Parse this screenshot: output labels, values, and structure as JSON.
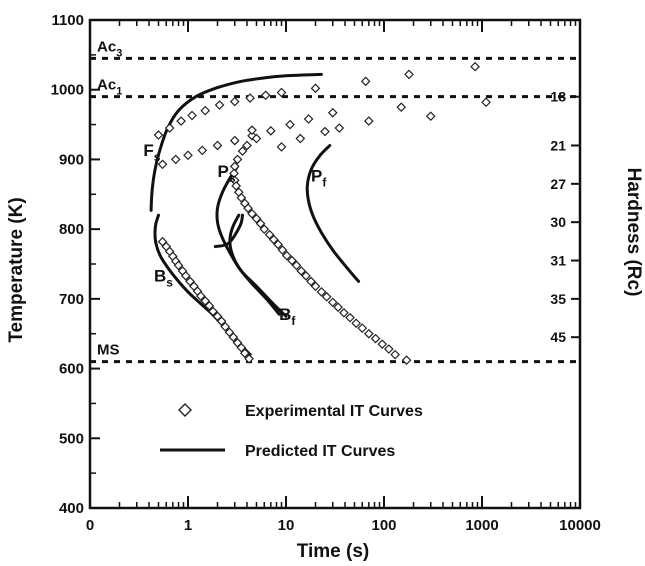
{
  "chart_data": {
    "type": "scatter",
    "x_scale": "log",
    "xlim": [
      0.1,
      10000
    ],
    "ylim": [
      400,
      1100
    ],
    "xlabel": "Time (s)",
    "ylabel": "Temperature (K)",
    "y2label": "Hardness (Rc)",
    "x_ticks": [
      {
        "value": 0.1,
        "label": "0"
      },
      {
        "value": 1,
        "label": "1"
      },
      {
        "value": 10,
        "label": "10"
      },
      {
        "value": 100,
        "label": "100"
      },
      {
        "value": 1000,
        "label": "1000"
      },
      {
        "value": 10000,
        "label": "10000"
      }
    ],
    "y_ticks": [
      400,
      500,
      600,
      700,
      800,
      900,
      1000,
      1100
    ],
    "hardness_ticks": [
      {
        "y": 990,
        "label": "18"
      },
      {
        "y": 920,
        "label": "21"
      },
      {
        "y": 865,
        "label": "27"
      },
      {
        "y": 810,
        "label": "30"
      },
      {
        "y": 755,
        "label": "31"
      },
      {
        "y": 700,
        "label": "35"
      },
      {
        "y": 645,
        "label": "45"
      }
    ],
    "ref_lines": [
      {
        "name": "Ac3",
        "base": "Ac",
        "sub": "3",
        "y": 1045
      },
      {
        "name": "Ac1",
        "base": "Ac",
        "sub": "1",
        "y": 990
      },
      {
        "name": "MS",
        "base": "MS",
        "sub": "",
        "y": 610
      }
    ],
    "curve_labels": [
      {
        "base": "F",
        "sub": "s",
        "x": 0.35,
        "y": 905
      },
      {
        "base": "P",
        "sub": "s",
        "x": 2.0,
        "y": 875
      },
      {
        "base": "P",
        "sub": "f",
        "x": 18,
        "y": 868
      },
      {
        "base": "B",
        "sub": "s",
        "x": 0.45,
        "y": 725
      },
      {
        "base": "B",
        "sub": "f",
        "x": 8.5,
        "y": 670
      }
    ],
    "legend": {
      "placement": "bottom-center",
      "entries": [
        {
          "marker": "diamond",
          "label": "Experimental IT Curves"
        },
        {
          "marker": "line",
          "label": "Predicted IT Curves"
        }
      ]
    },
    "series": [
      {
        "kind": "experimental",
        "marker": "diamond",
        "points": [
          [
            0.5,
            935
          ],
          [
            0.65,
            945
          ],
          [
            0.85,
            955
          ],
          [
            1.1,
            963
          ],
          [
            1.5,
            970
          ],
          [
            2.1,
            978
          ],
          [
            3,
            983
          ],
          [
            4.3,
            988
          ],
          [
            6.2,
            992
          ],
          [
            9,
            996
          ],
          [
            20,
            1002
          ],
          [
            65,
            1012
          ],
          [
            180,
            1022
          ],
          [
            850,
            1033
          ],
          [
            0.55,
            893
          ],
          [
            0.75,
            900
          ],
          [
            1.0,
            906
          ],
          [
            1.4,
            913
          ],
          [
            2,
            920
          ],
          [
            3,
            927
          ],
          [
            4.5,
            934
          ],
          [
            7,
            941
          ],
          [
            11,
            950
          ],
          [
            17,
            958
          ],
          [
            30,
            967
          ],
          [
            70,
            955
          ],
          [
            150,
            975
          ],
          [
            300,
            962
          ],
          [
            1100,
            982
          ],
          [
            4.5,
            942
          ],
          [
            5,
            930
          ],
          [
            4,
            920
          ],
          [
            3.6,
            912
          ],
          [
            3.2,
            900
          ],
          [
            3.0,
            890
          ],
          [
            2.95,
            880
          ],
          [
            3.0,
            870
          ],
          [
            3.1,
            862
          ],
          [
            3.3,
            853
          ],
          [
            3.5,
            845
          ],
          [
            3.8,
            837
          ],
          [
            4.1,
            830
          ],
          [
            4.5,
            822
          ],
          [
            5,
            815
          ],
          [
            5.5,
            808
          ],
          [
            6,
            800
          ],
          [
            6.8,
            792
          ],
          [
            7.5,
            785
          ],
          [
            8.3,
            778
          ],
          [
            9.2,
            770
          ],
          [
            10.2,
            762
          ],
          [
            11.5,
            755
          ],
          [
            12.8,
            748
          ],
          [
            14.3,
            740
          ],
          [
            16,
            733
          ],
          [
            18,
            725
          ],
          [
            20,
            718
          ],
          [
            23,
            710
          ],
          [
            26,
            703
          ],
          [
            30,
            695
          ],
          [
            34,
            688
          ],
          [
            39,
            680
          ],
          [
            45,
            673
          ],
          [
            52,
            665
          ],
          [
            60,
            658
          ],
          [
            70,
            650
          ],
          [
            82,
            643
          ],
          [
            96,
            635
          ],
          [
            112,
            628
          ],
          [
            130,
            620
          ],
          [
            170,
            612
          ],
          [
            0.55,
            782
          ],
          [
            0.6,
            775
          ],
          [
            0.65,
            768
          ],
          [
            0.7,
            761
          ],
          [
            0.75,
            754
          ],
          [
            0.8,
            748
          ],
          [
            0.88,
            740
          ],
          [
            0.95,
            733
          ],
          [
            1.05,
            725
          ],
          [
            1.15,
            718
          ],
          [
            1.25,
            711
          ],
          [
            1.35,
            704
          ],
          [
            1.5,
            697
          ],
          [
            1.65,
            690
          ],
          [
            1.8,
            682
          ],
          [
            2.0,
            675
          ],
          [
            2.2,
            668
          ],
          [
            2.4,
            660
          ],
          [
            2.65,
            652
          ],
          [
            2.9,
            645
          ],
          [
            3.2,
            637
          ],
          [
            3.5,
            630
          ],
          [
            3.8,
            622
          ],
          [
            4.2,
            614
          ],
          [
            9,
            918
          ],
          [
            14,
            930
          ],
          [
            25,
            940
          ],
          [
            35,
            945
          ]
        ]
      },
      {
        "kind": "predicted",
        "name": "Fs",
        "points": [
          [
            0.42,
            827
          ],
          [
            0.43,
            855
          ],
          [
            0.46,
            885
          ],
          [
            0.52,
            915
          ],
          [
            0.62,
            945
          ],
          [
            0.8,
            970
          ],
          [
            1.2,
            990
          ],
          [
            2,
            1003
          ],
          [
            3.5,
            1012
          ],
          [
            6,
            1017
          ],
          [
            10,
            1020
          ],
          [
            23,
            1022
          ]
        ]
      },
      {
        "kind": "predicted",
        "name": "Ps",
        "points": [
          [
            3.2,
            890
          ],
          [
            2.6,
            870
          ],
          [
            2.2,
            850
          ],
          [
            2.0,
            830
          ],
          [
            2.0,
            810
          ],
          [
            2.2,
            790
          ],
          [
            2.7,
            765
          ],
          [
            3.5,
            740
          ],
          [
            5,
            718
          ],
          [
            7.5,
            692
          ],
          [
            10,
            675
          ]
        ]
      },
      {
        "kind": "predicted",
        "name": "Pf",
        "points": [
          [
            28,
            920
          ],
          [
            22,
            905
          ],
          [
            18,
            885
          ],
          [
            16.5,
            862
          ],
          [
            17,
            840
          ],
          [
            19,
            818
          ],
          [
            23,
            795
          ],
          [
            30,
            770
          ],
          [
            40,
            748
          ],
          [
            55,
            725
          ]
        ]
      },
      {
        "kind": "predicted",
        "name": "Bs",
        "points": [
          [
            0.5,
            820
          ],
          [
            0.47,
            808
          ],
          [
            0.46,
            795
          ],
          [
            0.47,
            780
          ],
          [
            0.52,
            762
          ],
          [
            0.62,
            745
          ],
          [
            0.78,
            727
          ],
          [
            1.0,
            710
          ],
          [
            1.3,
            695
          ],
          [
            1.8,
            677
          ],
          [
            2.5,
            655
          ],
          [
            3.3,
            637
          ],
          [
            4.3,
            620
          ]
        ]
      },
      {
        "kind": "predicted",
        "name": "Bf",
        "points": [
          [
            3.3,
            820
          ],
          [
            2.9,
            805
          ],
          [
            2.7,
            790
          ],
          [
            2.7,
            775
          ],
          [
            2.9,
            760
          ],
          [
            3.3,
            745
          ],
          [
            4,
            730
          ],
          [
            5,
            715
          ],
          [
            6.5,
            698
          ],
          [
            8.5,
            678
          ]
        ]
      },
      {
        "kind": "predicted",
        "name": "Pmid",
        "points": [
          [
            1.9,
            775
          ],
          [
            2.6,
            780
          ],
          [
            3.4,
            805
          ],
          [
            3.6,
            820
          ]
        ]
      }
    ]
  }
}
